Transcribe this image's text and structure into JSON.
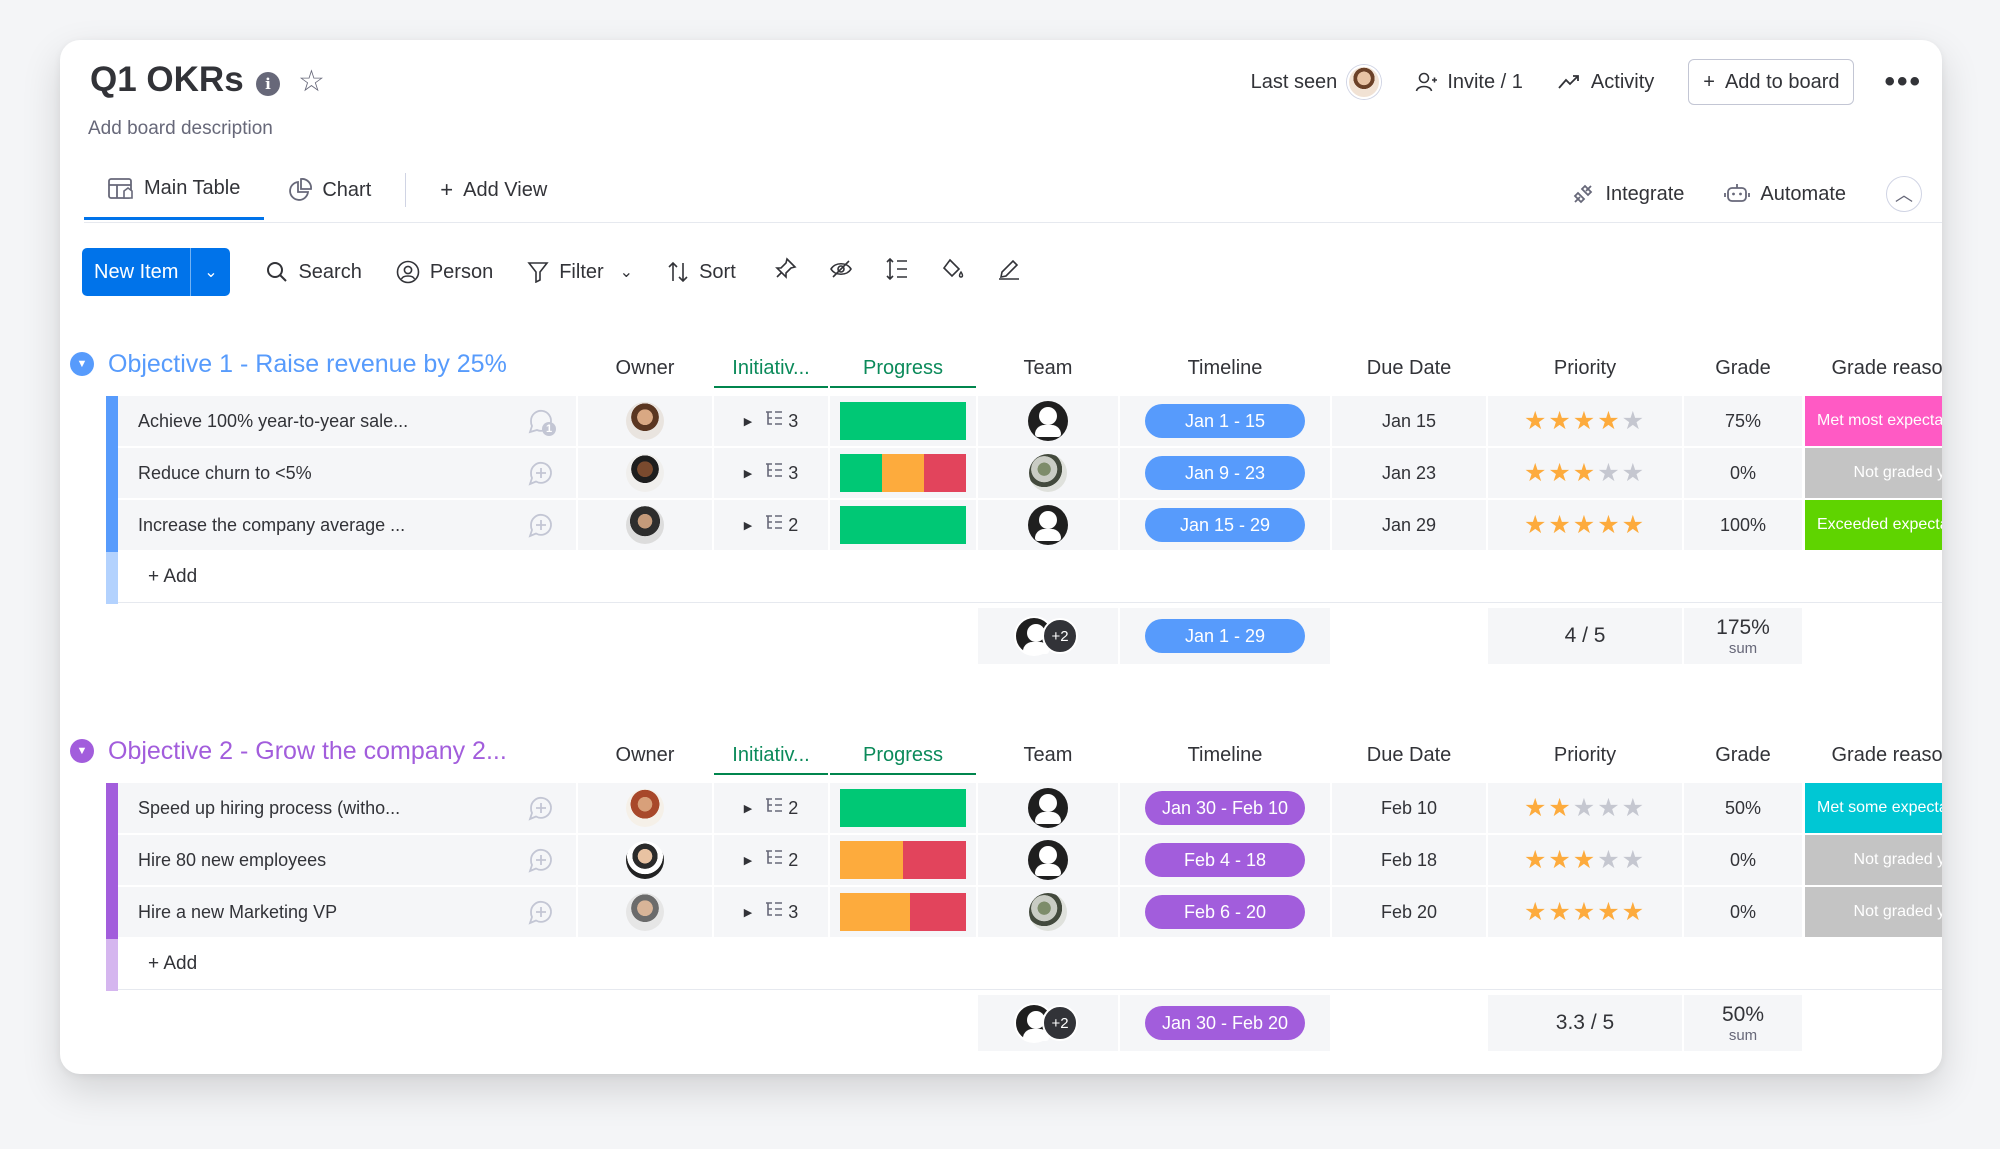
{
  "board": {
    "title": "Q1 OKRs",
    "description": "Add board description",
    "last_seen_label": "Last seen",
    "invite_label": "Invite / 1",
    "activity_label": "Activity",
    "add_to_board_label": "Add to board"
  },
  "tabs": [
    {
      "label": "Main Table",
      "icon": "table-icon"
    },
    {
      "label": "Chart",
      "icon": "chart-icon"
    },
    {
      "label": "Add View",
      "icon": "plus-icon"
    }
  ],
  "right_tabs": {
    "integrate": "Integrate",
    "automate": "Automate"
  },
  "toolbar": {
    "new_item": "New Item",
    "search": "Search",
    "person": "Person",
    "filter": "Filter",
    "sort": "Sort"
  },
  "columns": {
    "owner": "Owner",
    "initiatives": "Initiativ...",
    "progress": "Progress",
    "team": "Team",
    "timeline": "Timeline",
    "due_date": "Due Date",
    "priority": "Priority",
    "grade": "Grade",
    "grade_reasoning": "Grade reasoning"
  },
  "colors": {
    "accent": "#0073ea",
    "group1": "#579bfc",
    "group2": "#a25ddc",
    "green": "#00c875",
    "orange": "#fdab3d",
    "red": "#e2445c",
    "pink": "#ff5ac4",
    "lime": "#5fd400",
    "teal": "#00c7d4",
    "grey": "#c4c4c4"
  },
  "groups": [
    {
      "title": "Objective 1 - Raise revenue by 25%",
      "color": "#579bfc",
      "add_label": "+ Add",
      "items": [
        {
          "name": "Achieve 100% year-to-year sale...",
          "update_count": "1",
          "owner": "av-a",
          "initiatives": "3",
          "progress": [
            [
              "#00c875",
              1
            ]
          ],
          "team": "person",
          "timeline": "Jan 1 - 15",
          "due": "Jan 15",
          "stars": 4,
          "grade": "75%",
          "reason": "Met most expectatio...",
          "reason_color": "#ff5ac4"
        },
        {
          "name": "Reduce churn to <5%",
          "update_count": "",
          "owner": "av-b",
          "initiatives": "3",
          "progress": [
            [
              "#00c875",
              1
            ],
            [
              "#fdab3d",
              1
            ],
            [
              "#e2445c",
              1
            ]
          ],
          "team": "plant",
          "timeline": "Jan 9 - 23",
          "due": "Jan 23",
          "stars": 3,
          "grade": "0%",
          "reason": "Not graded yet",
          "reason_color": "#c4c4c4"
        },
        {
          "name": "Increase the company average ...",
          "update_count": "",
          "owner": "av-c",
          "initiatives": "2",
          "progress": [
            [
              "#00c875",
              1
            ]
          ],
          "team": "person",
          "timeline": "Jan 15 - 29",
          "due": "Jan 29",
          "stars": 5,
          "grade": "100%",
          "reason": "Exceeded expectatio...",
          "reason_color": "#5fd400"
        }
      ],
      "summary": {
        "team_extra": "+2",
        "timeline": "Jan 1 - 29",
        "priority": "4 / 5",
        "grade": "175%",
        "grade_sub": "sum"
      }
    },
    {
      "title": "Objective 2 - Grow the company 2...",
      "color": "#a25ddc",
      "add_label": "+ Add",
      "items": [
        {
          "name": "Speed up hiring process (witho...",
          "update_count": "",
          "owner": "av-d",
          "initiatives": "2",
          "progress": [
            [
              "#00c875",
              1
            ]
          ],
          "team": "person",
          "timeline": "Jan 30 - Feb 10",
          "due": "Feb 10",
          "stars": 2,
          "grade": "50%",
          "reason": "Met some expectatio...",
          "reason_color": "#00c7d4"
        },
        {
          "name": "Hire 80 new employees",
          "update_count": "",
          "owner": "av-e",
          "initiatives": "2",
          "progress": [
            [
              "#fdab3d",
              1
            ],
            [
              "#e2445c",
              1
            ]
          ],
          "team": "person",
          "timeline": "Feb 4 - 18",
          "due": "Feb 18",
          "stars": 3,
          "grade": "0%",
          "reason": "Not graded yet",
          "reason_color": "#c4c4c4"
        },
        {
          "name": "Hire a new Marketing VP",
          "update_count": "",
          "owner": "av-f",
          "initiatives": "3",
          "progress": [
            [
              "#fdab3d",
              2
            ],
            [
              "#e2445c",
              1.6
            ]
          ],
          "team": "plant",
          "timeline": "Feb 6 - 20",
          "due": "Feb 20",
          "stars": 5,
          "grade": "0%",
          "reason": "Not graded yet",
          "reason_color": "#c4c4c4"
        }
      ],
      "summary": {
        "team_extra": "+2",
        "timeline": "Jan 30 - Feb 20",
        "priority": "3.3 / 5",
        "grade": "50%",
        "grade_sub": "sum"
      }
    }
  ]
}
